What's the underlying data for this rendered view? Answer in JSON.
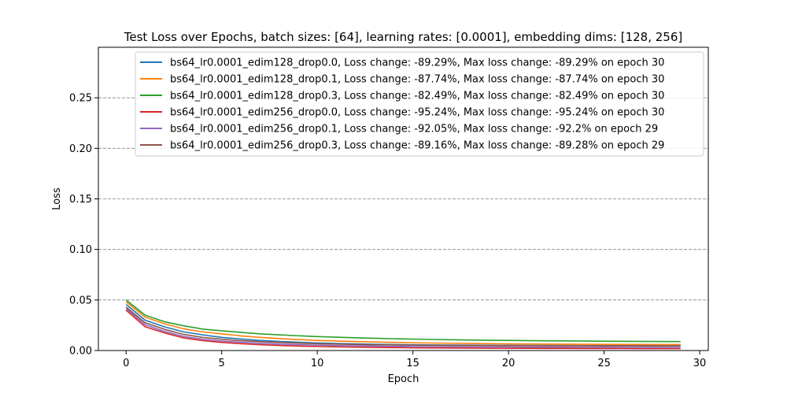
{
  "chart_data": {
    "type": "line",
    "title": "Test Loss over Epochs, batch sizes: [64], learning rates: [0.0001], embedding dims: [128, 256]",
    "xlabel": "Epoch",
    "ylabel": "Loss",
    "xlim": [
      -1.45,
      30.45
    ],
    "ylim": [
      0,
      0.3
    ],
    "x_ticks": [
      0,
      5,
      10,
      15,
      20,
      25,
      30
    ],
    "y_ticks": [
      0.0,
      0.05,
      0.1,
      0.15,
      0.2,
      0.25
    ],
    "x_tick_labels": [
      "0",
      "5",
      "10",
      "15",
      "20",
      "25",
      "30"
    ],
    "y_tick_labels": [
      "0.00",
      "0.05",
      "0.10",
      "0.15",
      "0.20",
      "0.25"
    ],
    "grid": "y-dashed",
    "legend_position": "top-right",
    "x": [
      0,
      1,
      2,
      3,
      4,
      5,
      6,
      7,
      8,
      9,
      10,
      11,
      12,
      13,
      14,
      15,
      16,
      17,
      18,
      19,
      20,
      21,
      22,
      23,
      24,
      25,
      26,
      27,
      28,
      29
    ],
    "series": [
      {
        "name": "bs64_lr0.0001_edim128_drop0.0, Loss change: -89.29%, Max loss change: -89.29% on epoch 30",
        "color": "#1f77b4",
        "values": [
          0.0456,
          0.03,
          0.0235,
          0.0185,
          0.0155,
          0.013,
          0.0115,
          0.01,
          0.009,
          0.0082,
          0.0075,
          0.007,
          0.0066,
          0.0062,
          0.0059,
          0.0057,
          0.0055,
          0.0054,
          0.0053,
          0.0052,
          0.0051,
          0.005,
          0.005,
          0.005,
          0.0049,
          0.0049,
          0.0049,
          0.0049,
          0.0049,
          0.0049
        ]
      },
      {
        "name": "bs64_lr0.0001_edim128_drop0.1, Loss change: -87.74%, Max loss change: -87.74% on epoch 30",
        "color": "#ff7f0e",
        "values": [
          0.0481,
          0.033,
          0.0265,
          0.0215,
          0.0185,
          0.0165,
          0.0145,
          0.013,
          0.0118,
          0.0108,
          0.01,
          0.0094,
          0.0089,
          0.0084,
          0.008,
          0.0077,
          0.0074,
          0.0072,
          0.007,
          0.0068,
          0.0066,
          0.0065,
          0.0064,
          0.0063,
          0.0062,
          0.0061,
          0.006,
          0.006,
          0.0059,
          0.0059
        ]
      },
      {
        "name": "bs64_lr0.0001_edim128_drop0.3, Loss change: -82.49%, Max loss change: -82.49% on epoch 30",
        "color": "#2ca02c",
        "values": [
          0.05,
          0.035,
          0.0285,
          0.0245,
          0.0212,
          0.0195,
          0.018,
          0.0165,
          0.0155,
          0.0146,
          0.0138,
          0.0132,
          0.0126,
          0.0121,
          0.0117,
          0.0113,
          0.011,
          0.0107,
          0.0104,
          0.0102,
          0.01,
          0.0098,
          0.0096,
          0.0095,
          0.0094,
          0.0092,
          0.0091,
          0.009,
          0.0089,
          0.0088
        ]
      },
      {
        "name": "bs64_lr0.0001_edim256_drop0.0, Loss change: -95.24%, Max loss change: -95.24% on epoch 30",
        "color": "#d62728",
        "values": [
          0.0399,
          0.0235,
          0.0175,
          0.0125,
          0.0098,
          0.008,
          0.0068,
          0.0058,
          0.005,
          0.0044,
          0.004,
          0.0036,
          0.0033,
          0.0031,
          0.0029,
          0.0027,
          0.0026,
          0.0025,
          0.0024,
          0.0023,
          0.0022,
          0.0022,
          0.0021,
          0.0021,
          0.002,
          0.002,
          0.002,
          0.0019,
          0.0019,
          0.0019
        ]
      },
      {
        "name": "bs64_lr0.0001_edim256_drop0.1, Loss change: -92.05%, Max loss change: -92.2% on epoch 29",
        "color": "#9467bd",
        "values": [
          0.0415,
          0.0255,
          0.019,
          0.014,
          0.0112,
          0.0094,
          0.0082,
          0.0072,
          0.0064,
          0.0058,
          0.0053,
          0.0049,
          0.0046,
          0.0043,
          0.0041,
          0.0039,
          0.0038,
          0.0037,
          0.0036,
          0.0035,
          0.0035,
          0.0034,
          0.0034,
          0.0033,
          0.0033,
          0.0033,
          0.0032,
          0.0032,
          0.0032,
          0.0033
        ]
      },
      {
        "name": "bs64_lr0.0001_edim256_drop0.3, Loss change: -89.16%, Max loss change: -89.28% on epoch 29",
        "color": "#8c564b",
        "values": [
          0.043,
          0.0275,
          0.021,
          0.016,
          0.013,
          0.0112,
          0.0098,
          0.0088,
          0.008,
          0.0073,
          0.0068,
          0.0064,
          0.006,
          0.0057,
          0.0055,
          0.0053,
          0.0052,
          0.0051,
          0.005,
          0.0049,
          0.0048,
          0.0048,
          0.0047,
          0.0047,
          0.0047,
          0.0046,
          0.0046,
          0.0046,
          0.0046,
          0.0047
        ]
      }
    ]
  }
}
